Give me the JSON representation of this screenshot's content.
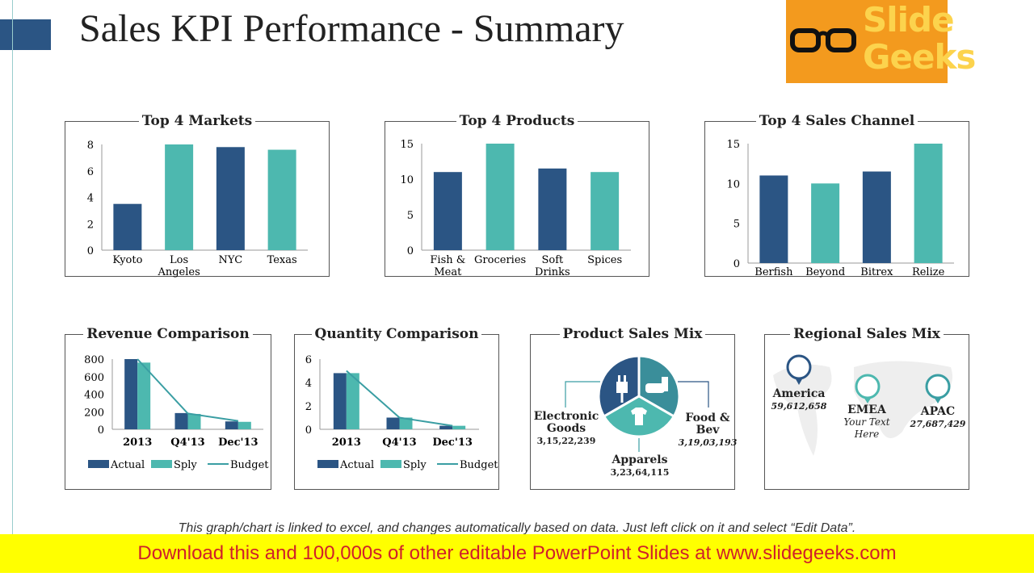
{
  "title": "Sales KPI Performance - Summary",
  "logo": {
    "line1": "Slide",
    "line2": "Geeks"
  },
  "colors": {
    "dark": "#2B5584",
    "teal": "#4DB8AF",
    "line": "#3A9EA3",
    "brand": "#F39A1E"
  },
  "chart_data": [
    {
      "id": "markets",
      "type": "bar",
      "title": "Top 4 Markets",
      "categories": [
        "Kyoto",
        "Los Angeles",
        "NYC",
        "Texas"
      ],
      "values": [
        3.5,
        8,
        7.8,
        7.6
      ],
      "ylim": [
        0,
        8
      ],
      "yticks": [
        0,
        2,
        4,
        6,
        8
      ],
      "bar_colors": [
        "#2B5584",
        "#4DB8AF",
        "#2B5584",
        "#4DB8AF"
      ]
    },
    {
      "id": "products",
      "type": "bar",
      "title": "Top 4 Products",
      "categories": [
        "Fish & Meat",
        "Groceries",
        "Soft Drinks",
        "Spices"
      ],
      "values": [
        11,
        15,
        11.5,
        11
      ],
      "ylim": [
        0,
        15
      ],
      "yticks": [
        0,
        5,
        10,
        15
      ],
      "bar_colors": [
        "#2B5584",
        "#4DB8AF",
        "#2B5584",
        "#4DB8AF"
      ]
    },
    {
      "id": "channels",
      "type": "bar",
      "title": "Top 4 Sales Channel",
      "categories": [
        "Berfish",
        "Beyond",
        "Bitrex",
        "Relize"
      ],
      "values": [
        11,
        10,
        11.5,
        15
      ],
      "ylim": [
        0,
        15
      ],
      "yticks": [
        0,
        5,
        10,
        15
      ],
      "bar_colors": [
        "#2B5584",
        "#4DB8AF",
        "#2B5584",
        "#4DB8AF"
      ]
    },
    {
      "id": "revenue",
      "type": "bar",
      "title": "Revenue Comparison",
      "categories": [
        "2013",
        "Q4'13",
        "Dec'13"
      ],
      "ylim": [
        0,
        800
      ],
      "yticks": [
        0,
        200,
        400,
        600,
        800
      ],
      "series": [
        {
          "name": "Actual",
          "type": "bar",
          "values": [
            800,
            185,
            90
          ]
        },
        {
          "name": "Sply",
          "type": "bar",
          "values": [
            760,
            175,
            85
          ]
        },
        {
          "name": "Budget",
          "type": "line",
          "values": [
            800,
            180,
            95
          ]
        }
      ],
      "legend": "bottom"
    },
    {
      "id": "quantity",
      "type": "bar",
      "title": "Quantity Comparison",
      "categories": [
        "2013",
        "Q4'13",
        "Dec'13"
      ],
      "ylim": [
        0,
        6
      ],
      "yticks": [
        0,
        2,
        4,
        6
      ],
      "series": [
        {
          "name": "Actual",
          "type": "bar",
          "values": [
            4.8,
            1,
            0.3
          ]
        },
        {
          "name": "Sply",
          "type": "bar",
          "values": [
            4.8,
            1,
            0.3
          ]
        },
        {
          "name": "Budget",
          "type": "line",
          "values": [
            5,
            1,
            0.3
          ]
        }
      ],
      "legend": "bottom"
    }
  ],
  "product_mix": {
    "title": "Product Sales Mix",
    "items": [
      {
        "name": "Electronic Goods",
        "value": "3,15,22,239",
        "icon": "plug-icon"
      },
      {
        "name": "Food & Bev",
        "value": "3,19,03,193",
        "icon": "food-icon"
      },
      {
        "name": "Apparels",
        "value": "3,23,64,115",
        "icon": "tshirt-icon"
      }
    ]
  },
  "regional_mix": {
    "title": "Regional Sales Mix",
    "items": [
      {
        "name": "America",
        "value": "59,612,658"
      },
      {
        "name": "EMEA",
        "value": "Your Text Here"
      },
      {
        "name": "APAC",
        "value": "27,687,429"
      }
    ]
  },
  "footnote": "This graph/chart is linked to excel, and changes automatically based on data. Just left click on it and select “Edit Data”.",
  "banner": "Download this and 100,000s of other editable PowerPoint Slides at www.slidegeeks.com"
}
